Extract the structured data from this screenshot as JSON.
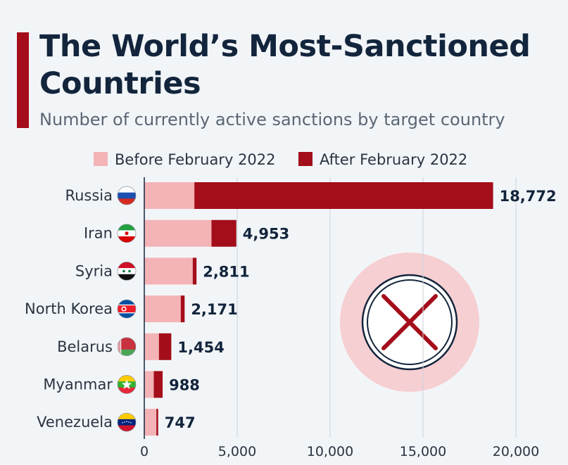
{
  "title": "The World’s Most-Sanctioned Countries",
  "subtitle": "Number of currently active sanctions by target country",
  "colors": {
    "before": "#f4b3b6",
    "after": "#a30e1a",
    "accent": "#a30e1a",
    "title": "#13253c",
    "grid": "#c9d1da",
    "watermark_circle": "#f6cfd2"
  },
  "watermark_icon": "cross-in-circle-icon",
  "chart_data": {
    "type": "bar",
    "orientation": "horizontal",
    "stacked": true,
    "categories": [
      "Russia",
      "Iran",
      "Syria",
      "North Korea",
      "Belarus",
      "Myanmar",
      "Venezuela"
    ],
    "flag_icons": [
      "russia-flag-icon",
      "iran-flag-icon",
      "syria-flag-icon",
      "north-korea-flag-icon",
      "belarus-flag-icon",
      "myanmar-flag-icon",
      "venezuela-flag-icon"
    ],
    "series": [
      {
        "name": "Before February 2022",
        "values": [
          2695,
          3616,
          2608,
          1964,
          788,
          510,
          651
        ]
      },
      {
        "name": "After February 2022",
        "values": [
          16077,
          1337,
          203,
          207,
          666,
          478,
          96
        ]
      }
    ],
    "totals": [
      18772,
      4953,
      2811,
      2171,
      1454,
      988,
      747
    ],
    "total_labels": [
      "18,772",
      "4,953",
      "2,811",
      "2,171",
      "1,454",
      "988",
      "747"
    ],
    "xlim": [
      0,
      20000
    ],
    "xticks": [
      0,
      5000,
      10000,
      15000,
      20000
    ],
    "xtick_labels": [
      "0",
      "5,000",
      "10,000",
      "15,000",
      "20,000"
    ],
    "grid": true,
    "legend_position": "top"
  }
}
